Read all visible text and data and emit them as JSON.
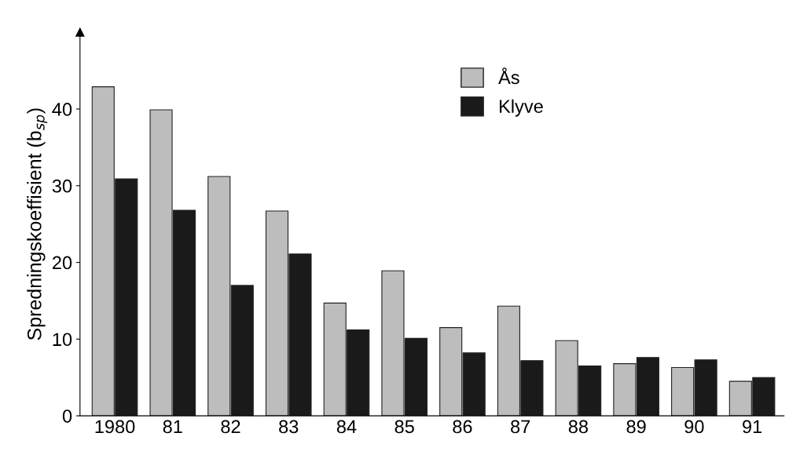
{
  "chart_data": {
    "type": "bar",
    "ylabel": "Spredningskoeffisient (b$_{sp}$)",
    "categories": [
      "1980",
      "81",
      "82",
      "83",
      "84",
      "85",
      "86",
      "87",
      "88",
      "89",
      "90",
      "91"
    ],
    "series": [
      {
        "name": "Ås",
        "color": "#bdbdbd",
        "values": [
          42.9,
          39.9,
          31.2,
          26.7,
          14.7,
          18.9,
          11.5,
          14.3,
          9.8,
          6.8,
          6.3,
          4.5
        ]
      },
      {
        "name": "Klyve",
        "color": "#1a1a1a",
        "values": [
          30.9,
          26.8,
          17.0,
          21.1,
          11.2,
          10.1,
          8.2,
          7.2,
          6.5,
          7.6,
          7.3,
          5.0
        ]
      }
    ],
    "ylim": [
      0,
      50
    ],
    "yticks": [
      0,
      10,
      20,
      30,
      40
    ],
    "grid": false,
    "legend": "top"
  }
}
